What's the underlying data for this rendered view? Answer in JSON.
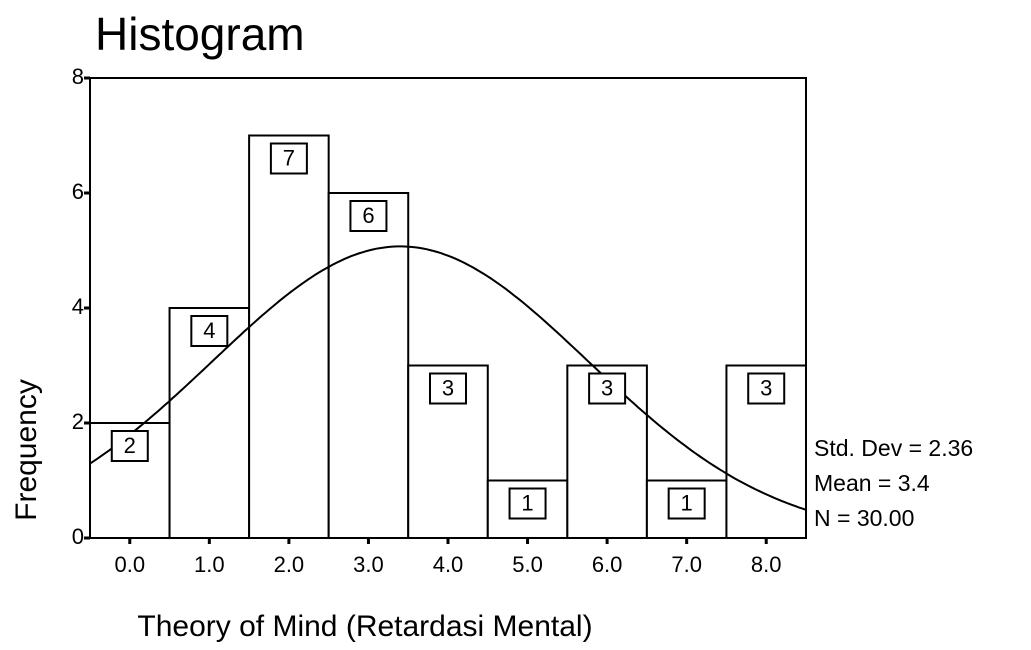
{
  "chart_data": {
    "type": "histogram",
    "title": "Histogram",
    "x_label": "Theory of Mind (Retardasi Mental)",
    "y_label": "Frequency",
    "bins": [
      -0.5,
      0.5,
      1.5,
      2.5,
      3.5,
      4.5,
      5.5,
      6.5,
      7.5,
      8.5
    ],
    "counts": [
      2,
      4,
      7,
      6,
      3,
      1,
      3,
      1,
      3
    ],
    "color": "#ffffff",
    "xlim": [
      -0.5,
      8.5
    ],
    "xticks": [
      {
        "value": 0,
        "label": "0.0"
      },
      {
        "value": 1,
        "label": "1.0"
      },
      {
        "value": 2,
        "label": "2.0"
      },
      {
        "value": 3,
        "label": "3.0"
      },
      {
        "value": 4,
        "label": "4.0"
      },
      {
        "value": 5,
        "label": "5.0"
      },
      {
        "value": 6,
        "label": "6.0"
      },
      {
        "value": 7,
        "label": "7.0"
      },
      {
        "value": 8,
        "label": "8.0"
      }
    ],
    "ylim": [
      0,
      8
    ],
    "yticks": [
      0,
      2,
      4,
      6,
      8
    ],
    "normal_curve": {
      "mean": 3.4,
      "std_dev": 2.36,
      "n": 30
    },
    "annotations": [
      "Std. Dev = 2.36",
      "Mean = 3.4",
      "N = 30.00"
    ]
  }
}
